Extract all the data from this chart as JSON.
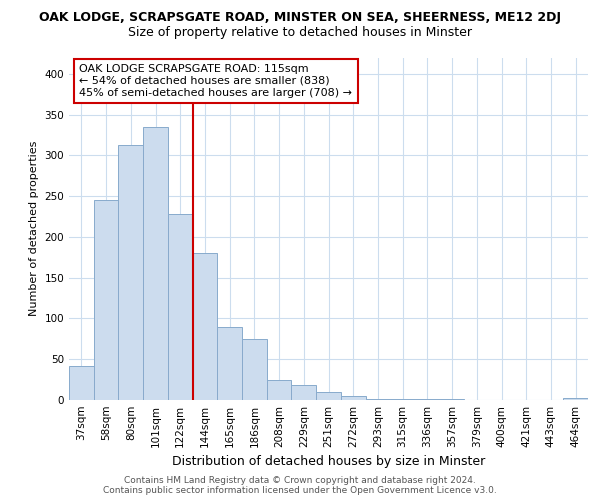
{
  "title_line1": "OAK LODGE, SCRAPSGATE ROAD, MINSTER ON SEA, SHEERNESS, ME12 2DJ",
  "title_line2": "Size of property relative to detached houses in Minster",
  "xlabel": "Distribution of detached houses by size in Minster",
  "ylabel": "Number of detached properties",
  "bar_color": "#ccdcee",
  "bar_edge_color": "#88aacc",
  "highlight_color": "#cc0000",
  "categories": [
    "37sqm",
    "58sqm",
    "80sqm",
    "101sqm",
    "122sqm",
    "144sqm",
    "165sqm",
    "186sqm",
    "208sqm",
    "229sqm",
    "251sqm",
    "272sqm",
    "293sqm",
    "315sqm",
    "336sqm",
    "357sqm",
    "379sqm",
    "400sqm",
    "421sqm",
    "443sqm",
    "464sqm"
  ],
  "values": [
    42,
    245,
    313,
    335,
    228,
    180,
    90,
    75,
    25,
    18,
    10,
    5,
    1,
    1,
    1,
    1,
    0,
    0,
    0,
    0,
    2
  ],
  "ylim": [
    0,
    420
  ],
  "yticks": [
    0,
    50,
    100,
    150,
    200,
    250,
    300,
    350,
    400
  ],
  "highlight_bar_index": 4,
  "annotation_line1": "OAK LODGE SCRAPSGATE ROAD: 115sqm",
  "annotation_line2": "← 54% of detached houses are smaller (838)",
  "annotation_line3": "45% of semi-detached houses are larger (708) →",
  "footer_line1": "Contains HM Land Registry data © Crown copyright and database right 2024.",
  "footer_line2": "Contains public sector information licensed under the Open Government Licence v3.0.",
  "grid_color": "#ccddee",
  "title1_fontsize": 9,
  "title2_fontsize": 9,
  "ylabel_fontsize": 8,
  "xlabel_fontsize": 9,
  "tick_fontsize": 7.5,
  "annotation_fontsize": 8,
  "footer_fontsize": 6.5
}
